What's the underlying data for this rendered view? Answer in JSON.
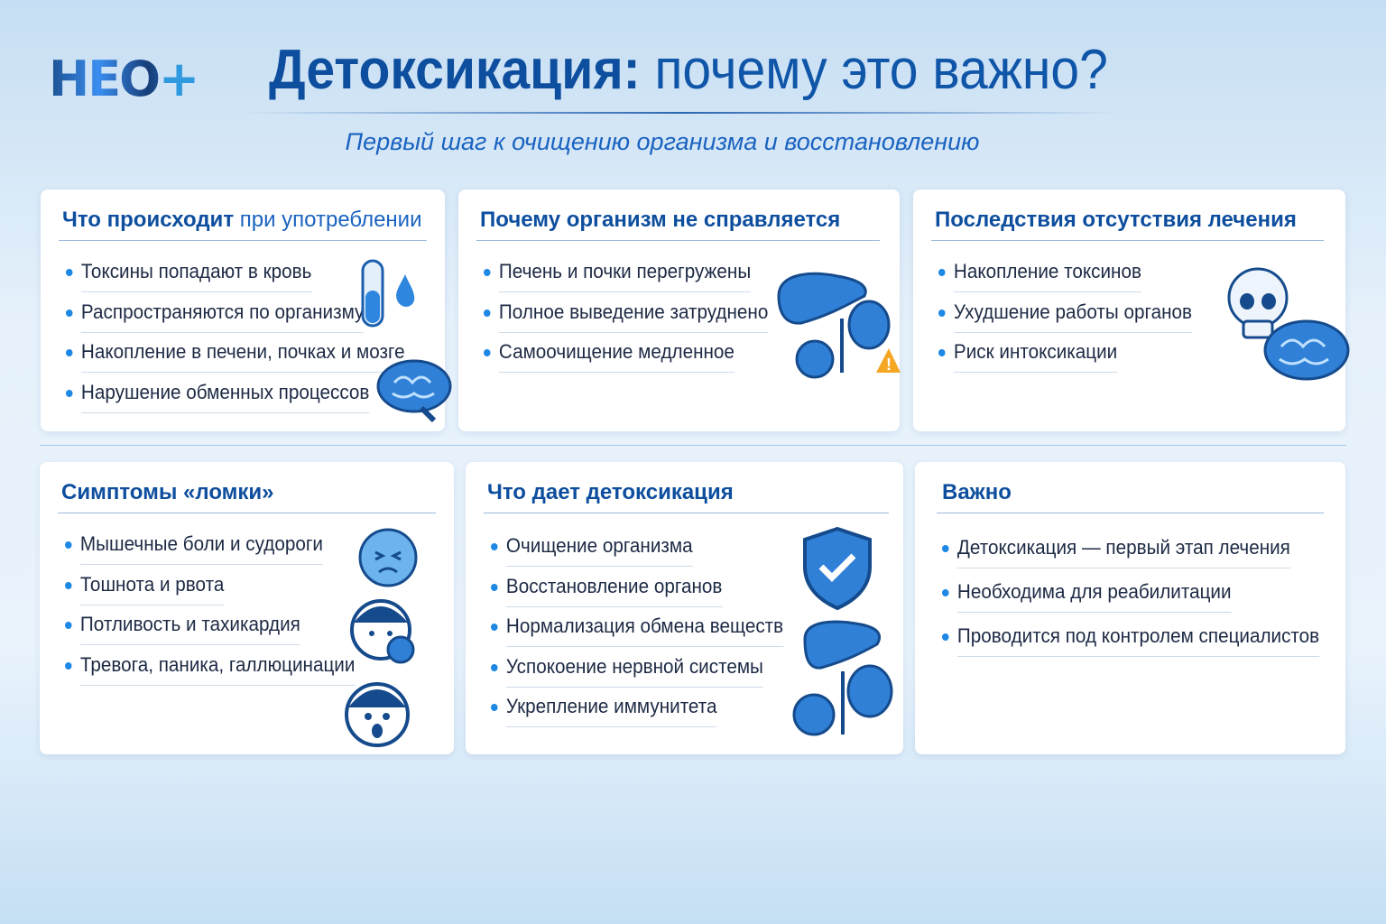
{
  "logo": {
    "text": "НЕО",
    "plus": "+"
  },
  "header": {
    "title_bold": "Детоксикация:",
    "title_regular": " почему это важно?",
    "subtitle": "Первый шаг к очищению организма и восстановлению"
  },
  "colors": {
    "primary": "#0d4e9e",
    "accent": "#1e88e5",
    "warning": "#f5a623"
  },
  "cards": [
    {
      "title_bold": "Что происходит",
      "title_regular": " при употреблении",
      "icons": [
        "test-tube-icon",
        "drop-icon",
        "brain-icon"
      ],
      "items": [
        "Токсины попадают в кровь",
        "Распространяются по организму",
        "Накопление в печени, почках и мозге",
        "Нарушение обменных процессов"
      ]
    },
    {
      "title_bold": "Почему организм не справляется",
      "icons": [
        "liver-icon",
        "kidneys-icon",
        "warning-icon"
      ],
      "items": [
        "Печень и почки перегружены",
        "Полное выведение затруднено",
        "Самоочищение медленное"
      ]
    },
    {
      "title_bold": "Последствия отсутствия лечения",
      "icons": [
        "skull-icon",
        "brain-icon"
      ],
      "items": [
        "Накопление токсинов",
        "Ухудшение работы органов",
        "Риск интоксикации"
      ]
    },
    {
      "title_bold": "Симптомы «ломки»",
      "icons": [
        "sick-face-icon",
        "sweating-face-icon",
        "anxious-face-icon"
      ],
      "items": [
        "Мышечные боли и судороги",
        "Тошнота и рвота",
        "Потливость и тахикардия",
        "Тревога, паника, галлюцинации"
      ]
    },
    {
      "title_bold": "Что дает детоксикация",
      "icons": [
        "shield-check-icon",
        "liver-icon",
        "kidneys-icon"
      ],
      "items": [
        "Очищение организма",
        "Восстановление органов",
        "Нормализация обмена веществ",
        "Успокоение нервной системы",
        "Укрепление иммунитета"
      ]
    },
    {
      "title_bold": "Важно",
      "items": [
        "Детоксикация — первый этап лечения",
        "Необходима для реабилитации",
        "Проводится под контролем специалистов"
      ]
    }
  ]
}
